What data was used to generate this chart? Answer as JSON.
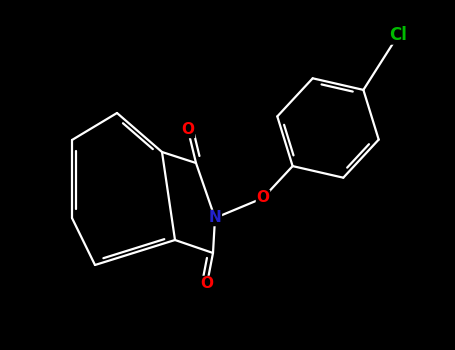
{
  "background_color": "#000000",
  "atom_colors": {
    "C": "#ffffff",
    "N": "#2222cc",
    "O": "#ff0000",
    "Cl": "#00bb00"
  },
  "bond_color": "#ffffff",
  "lw": 1.6,
  "font_size_N": 11,
  "font_size_O": 11,
  "font_size_Cl": 12
}
